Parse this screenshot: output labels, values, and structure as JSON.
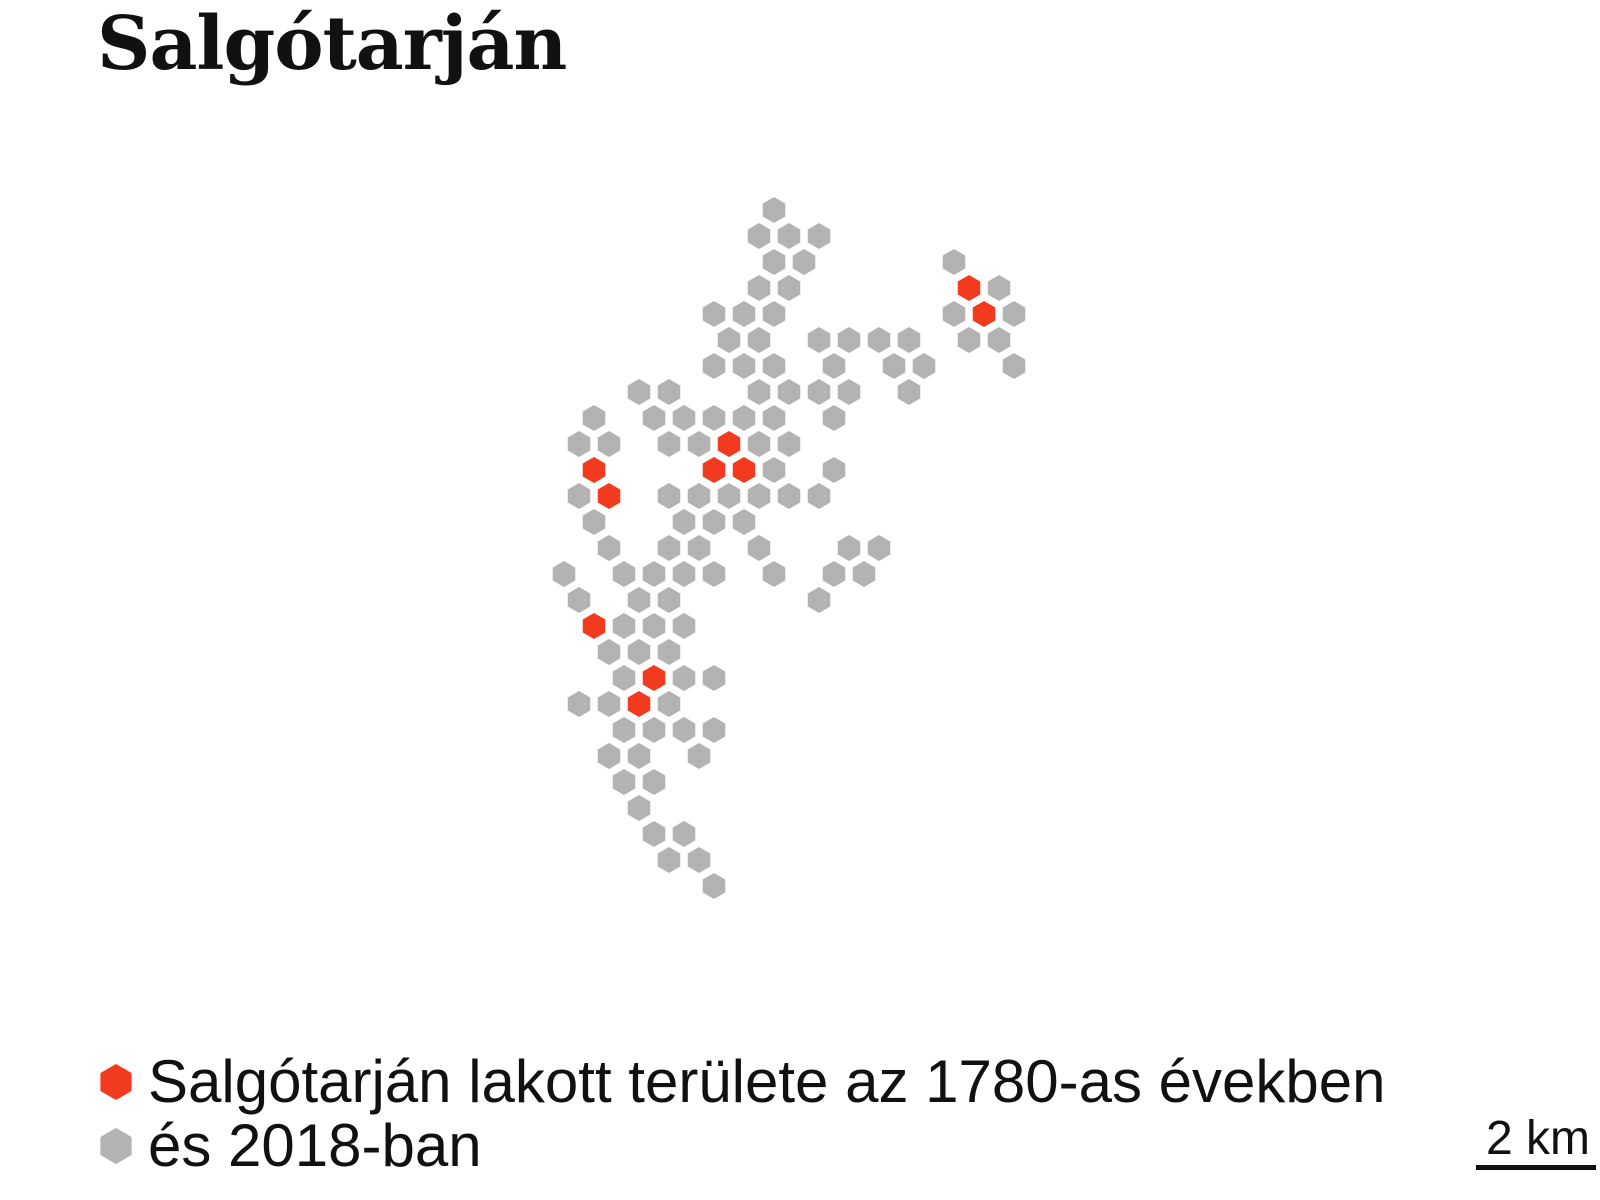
{
  "title": "Salgótarján",
  "colors": {
    "historic": "#f23a1e",
    "current": "#b3b3b3",
    "background": "#ffffff",
    "text": "#111111"
  },
  "legend": [
    {
      "label": "Salgótarján lakott területe az 1780-as években",
      "color_key": "historic"
    },
    {
      "label": "és 2018-ban",
      "color_key": "current"
    }
  ],
  "scale": {
    "label": "2 km"
  },
  "hexes": [
    {
      "col": 15,
      "row": 0,
      "era": "2018"
    },
    {
      "col": 14,
      "row": 1,
      "era": "2018"
    },
    {
      "col": 16,
      "row": 1,
      "era": "2018"
    },
    {
      "col": 18,
      "row": 1,
      "era": "2018"
    },
    {
      "col": 15,
      "row": 2,
      "era": "2018"
    },
    {
      "col": 17,
      "row": 2,
      "era": "2018"
    },
    {
      "col": 27,
      "row": 2,
      "era": "2018"
    },
    {
      "col": 14,
      "row": 3,
      "era": "2018"
    },
    {
      "col": 16,
      "row": 3,
      "era": "2018"
    },
    {
      "col": 28,
      "row": 3,
      "era": "1780"
    },
    {
      "col": 30,
      "row": 3,
      "era": "2018"
    },
    {
      "col": 11,
      "row": 4,
      "era": "2018"
    },
    {
      "col": 13,
      "row": 4,
      "era": "2018"
    },
    {
      "col": 15,
      "row": 4,
      "era": "2018"
    },
    {
      "col": 27,
      "row": 4,
      "era": "2018"
    },
    {
      "col": 29,
      "row": 4,
      "era": "1780"
    },
    {
      "col": 31,
      "row": 4,
      "era": "2018"
    },
    {
      "col": 12,
      "row": 5,
      "era": "2018"
    },
    {
      "col": 14,
      "row": 5,
      "era": "2018"
    },
    {
      "col": 18,
      "row": 5,
      "era": "2018"
    },
    {
      "col": 20,
      "row": 5,
      "era": "2018"
    },
    {
      "col": 22,
      "row": 5,
      "era": "2018"
    },
    {
      "col": 24,
      "row": 5,
      "era": "2018"
    },
    {
      "col": 28,
      "row": 5,
      "era": "2018"
    },
    {
      "col": 30,
      "row": 5,
      "era": "2018"
    },
    {
      "col": 11,
      "row": 6,
      "era": "2018"
    },
    {
      "col": 13,
      "row": 6,
      "era": "2018"
    },
    {
      "col": 15,
      "row": 6,
      "era": "2018"
    },
    {
      "col": 19,
      "row": 6,
      "era": "2018"
    },
    {
      "col": 23,
      "row": 6,
      "era": "2018"
    },
    {
      "col": 25,
      "row": 6,
      "era": "2018"
    },
    {
      "col": 31,
      "row": 6,
      "era": "2018"
    },
    {
      "col": 6,
      "row": 7,
      "era": "2018"
    },
    {
      "col": 8,
      "row": 7,
      "era": "2018"
    },
    {
      "col": 14,
      "row": 7,
      "era": "2018"
    },
    {
      "col": 16,
      "row": 7,
      "era": "2018"
    },
    {
      "col": 18,
      "row": 7,
      "era": "2018"
    },
    {
      "col": 20,
      "row": 7,
      "era": "2018"
    },
    {
      "col": 24,
      "row": 7,
      "era": "2018"
    },
    {
      "col": 3,
      "row": 8,
      "era": "2018"
    },
    {
      "col": 7,
      "row": 8,
      "era": "2018"
    },
    {
      "col": 9,
      "row": 8,
      "era": "2018"
    },
    {
      "col": 11,
      "row": 8,
      "era": "2018"
    },
    {
      "col": 13,
      "row": 8,
      "era": "2018"
    },
    {
      "col": 15,
      "row": 8,
      "era": "2018"
    },
    {
      "col": 19,
      "row": 8,
      "era": "2018"
    },
    {
      "col": 2,
      "row": 9,
      "era": "2018"
    },
    {
      "col": 4,
      "row": 9,
      "era": "2018"
    },
    {
      "col": 8,
      "row": 9,
      "era": "2018"
    },
    {
      "col": 10,
      "row": 9,
      "era": "2018"
    },
    {
      "col": 12,
      "row": 9,
      "era": "1780"
    },
    {
      "col": 14,
      "row": 9,
      "era": "2018"
    },
    {
      "col": 16,
      "row": 9,
      "era": "2018"
    },
    {
      "col": 3,
      "row": 10,
      "era": "1780"
    },
    {
      "col": 11,
      "row": 10,
      "era": "1780"
    },
    {
      "col": 13,
      "row": 10,
      "era": "1780"
    },
    {
      "col": 15,
      "row": 10,
      "era": "2018"
    },
    {
      "col": 19,
      "row": 10,
      "era": "2018"
    },
    {
      "col": 2,
      "row": 11,
      "era": "2018"
    },
    {
      "col": 4,
      "row": 11,
      "era": "1780"
    },
    {
      "col": 8,
      "row": 11,
      "era": "2018"
    },
    {
      "col": 10,
      "row": 11,
      "era": "2018"
    },
    {
      "col": 12,
      "row": 11,
      "era": "2018"
    },
    {
      "col": 14,
      "row": 11,
      "era": "2018"
    },
    {
      "col": 16,
      "row": 11,
      "era": "2018"
    },
    {
      "col": 18,
      "row": 11,
      "era": "2018"
    },
    {
      "col": 3,
      "row": 12,
      "era": "2018"
    },
    {
      "col": 9,
      "row": 12,
      "era": "2018"
    },
    {
      "col": 11,
      "row": 12,
      "era": "2018"
    },
    {
      "col": 13,
      "row": 12,
      "era": "2018"
    },
    {
      "col": 4,
      "row": 13,
      "era": "2018"
    },
    {
      "col": 8,
      "row": 13,
      "era": "2018"
    },
    {
      "col": 10,
      "row": 13,
      "era": "2018"
    },
    {
      "col": 14,
      "row": 13,
      "era": "2018"
    },
    {
      "col": 20,
      "row": 13,
      "era": "2018"
    },
    {
      "col": 22,
      "row": 13,
      "era": "2018"
    },
    {
      "col": 1,
      "row": 14,
      "era": "2018"
    },
    {
      "col": 5,
      "row": 14,
      "era": "2018"
    },
    {
      "col": 7,
      "row": 14,
      "era": "2018"
    },
    {
      "col": 9,
      "row": 14,
      "era": "2018"
    },
    {
      "col": 11,
      "row": 14,
      "era": "2018"
    },
    {
      "col": 15,
      "row": 14,
      "era": "2018"
    },
    {
      "col": 19,
      "row": 14,
      "era": "2018"
    },
    {
      "col": 21,
      "row": 14,
      "era": "2018"
    },
    {
      "col": 2,
      "row": 15,
      "era": "2018"
    },
    {
      "col": 6,
      "row": 15,
      "era": "2018"
    },
    {
      "col": 8,
      "row": 15,
      "era": "2018"
    },
    {
      "col": 18,
      "row": 15,
      "era": "2018"
    },
    {
      "col": 3,
      "row": 16,
      "era": "1780"
    },
    {
      "col": 5,
      "row": 16,
      "era": "2018"
    },
    {
      "col": 7,
      "row": 16,
      "era": "2018"
    },
    {
      "col": 9,
      "row": 16,
      "era": "2018"
    },
    {
      "col": 4,
      "row": 17,
      "era": "2018"
    },
    {
      "col": 6,
      "row": 17,
      "era": "2018"
    },
    {
      "col": 8,
      "row": 17,
      "era": "2018"
    },
    {
      "col": 5,
      "row": 18,
      "era": "2018"
    },
    {
      "col": 7,
      "row": 18,
      "era": "1780"
    },
    {
      "col": 9,
      "row": 18,
      "era": "2018"
    },
    {
      "col": 11,
      "row": 18,
      "era": "2018"
    },
    {
      "col": 2,
      "row": 19,
      "era": "2018"
    },
    {
      "col": 4,
      "row": 19,
      "era": "2018"
    },
    {
      "col": 6,
      "row": 19,
      "era": "1780"
    },
    {
      "col": 8,
      "row": 19,
      "era": "2018"
    },
    {
      "col": 5,
      "row": 20,
      "era": "2018"
    },
    {
      "col": 7,
      "row": 20,
      "era": "2018"
    },
    {
      "col": 9,
      "row": 20,
      "era": "2018"
    },
    {
      "col": 11,
      "row": 20,
      "era": "2018"
    },
    {
      "col": 4,
      "row": 21,
      "era": "2018"
    },
    {
      "col": 6,
      "row": 21,
      "era": "2018"
    },
    {
      "col": 10,
      "row": 21,
      "era": "2018"
    },
    {
      "col": 5,
      "row": 22,
      "era": "2018"
    },
    {
      "col": 7,
      "row": 22,
      "era": "2018"
    },
    {
      "col": 6,
      "row": 23,
      "era": "2018"
    },
    {
      "col": 7,
      "row": 24,
      "era": "2018"
    },
    {
      "col": 9,
      "row": 24,
      "era": "2018"
    },
    {
      "col": 8,
      "row": 25,
      "era": "2018"
    },
    {
      "col": 10,
      "row": 25,
      "era": "2018"
    },
    {
      "col": 11,
      "row": 26,
      "era": "2018"
    }
  ]
}
